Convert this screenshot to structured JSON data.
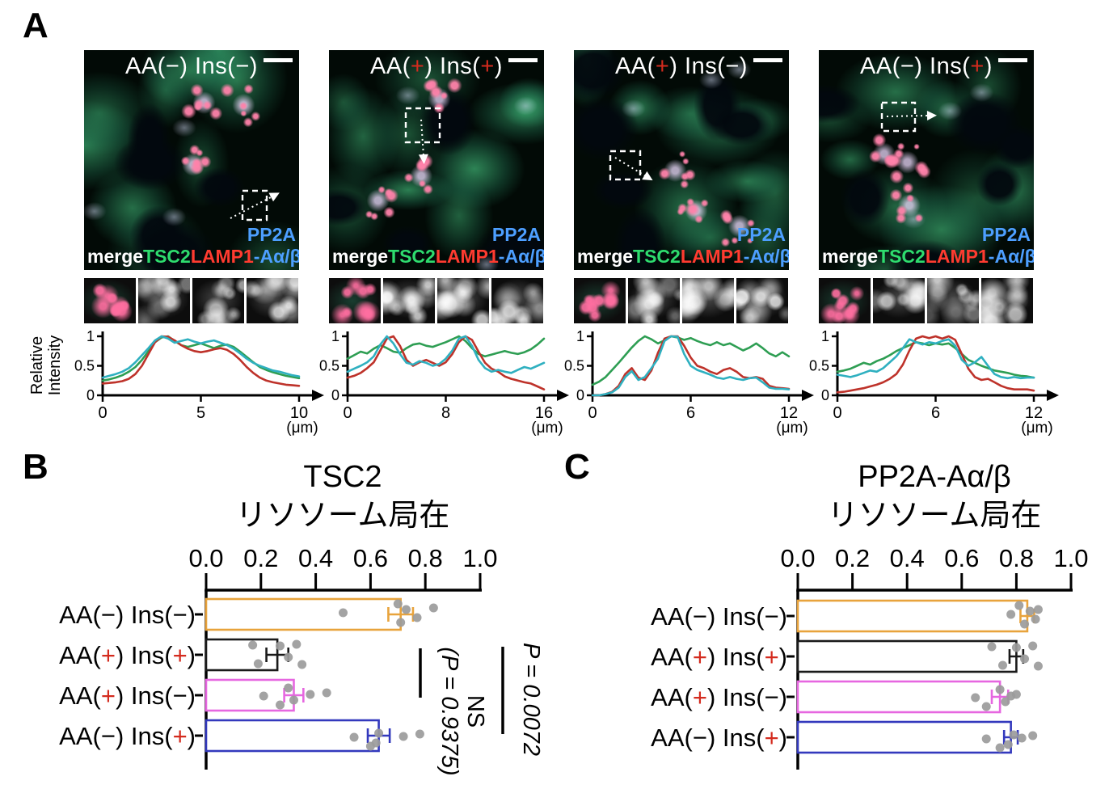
{
  "figure": {
    "panel_a_label": "A",
    "panel_b_label": "B",
    "panel_c_label": "C"
  },
  "text": {
    "condition_prefix": "AA(",
    "condition_mid": ") Ins(",
    "condition_suffix": ")",
    "channel_labels": {
      "merge": "merge",
      "tsc2": "TSC2",
      "lamp1": "LAMP1",
      "pp2a_line1": "PP2A",
      "pp2a_line2": "-Aα/β"
    },
    "profile_ylabel_line1": "Relative",
    "profile_ylabel_line2": "Intensity",
    "unit": "(μm)"
  },
  "conditions": [
    {
      "aa": "−",
      "ins": "−"
    },
    {
      "aa": "+",
      "ins": "+"
    },
    {
      "aa": "+",
      "ins": "−"
    },
    {
      "aa": "−",
      "ins": "+"
    }
  ],
  "colors": {
    "bar_outlines": [
      "#E8A33C",
      "#1A1A1A",
      "#E667E0",
      "#3339BD"
    ],
    "dot": "#9B9B9B",
    "profile_green": "#2E9E53",
    "profile_red": "#BE322A",
    "profile_cyan": "#2FB0C0",
    "channel_merge": "#FFFFFF",
    "channel_tsc2": "#2EDC6E",
    "channel_lamp1": "#FF3B30",
    "channel_pp2a": "#4D9FFF",
    "plus_red": "#D42B1E"
  },
  "chart_data": [
    {
      "type": "line",
      "id": "A-profile-1",
      "condition": "AA(−) Ins(−)",
      "ylabel": "Relative Intensity",
      "xlabel": "(μm)",
      "xlim": [
        0,
        10
      ],
      "xticks": [
        "0",
        "5",
        "10"
      ],
      "ylim": [
        0,
        1
      ],
      "yticks": [
        "1",
        "0.5",
        "0"
      ],
      "series": [
        {
          "name": "TSC2",
          "values": [
            0.25,
            0.27,
            0.3,
            0.34,
            0.4,
            0.48,
            0.6,
            0.75,
            0.9,
            0.98,
            1.0,
            0.92,
            0.85,
            0.82,
            0.85,
            0.88,
            0.84,
            0.8,
            0.84,
            0.86,
            0.82,
            0.74,
            0.65,
            0.56,
            0.48,
            0.43,
            0.39,
            0.36,
            0.33,
            0.31,
            0.29
          ]
        },
        {
          "name": "LAMP1",
          "values": [
            0.2,
            0.21,
            0.22,
            0.24,
            0.28,
            0.36,
            0.5,
            0.7,
            0.9,
            1.0,
            0.99,
            0.93,
            0.85,
            0.79,
            0.75,
            0.73,
            0.75,
            0.78,
            0.8,
            0.77,
            0.7,
            0.6,
            0.48,
            0.38,
            0.3,
            0.25,
            0.22,
            0.2,
            0.18,
            0.17,
            0.16
          ]
        },
        {
          "name": "PP2A-Aα/β",
          "values": [
            0.3,
            0.33,
            0.36,
            0.4,
            0.46,
            0.56,
            0.68,
            0.8,
            0.93,
            1.0,
            0.96,
            0.89,
            0.92,
            0.95,
            0.91,
            0.88,
            0.91,
            0.93,
            0.89,
            0.85,
            0.79,
            0.71,
            0.62,
            0.55,
            0.5,
            0.46,
            0.42,
            0.4,
            0.37,
            0.34,
            0.32
          ]
        }
      ]
    },
    {
      "type": "line",
      "id": "A-profile-2",
      "condition": "AA(+) Ins(+)",
      "ylabel": "Relative Intensity",
      "xlabel": "(μm)",
      "xlim": [
        0,
        16
      ],
      "xticks": [
        "0",
        "8",
        "16"
      ],
      "ylim": [
        0,
        1
      ],
      "yticks": [
        "1",
        "0.5",
        "0"
      ],
      "series": [
        {
          "name": "TSC2",
          "values": [
            0.62,
            0.68,
            0.74,
            0.71,
            0.79,
            0.85,
            0.8,
            0.74,
            0.72,
            0.8,
            0.86,
            0.88,
            0.84,
            0.82,
            0.86,
            0.9,
            0.95,
            1.0,
            0.92,
            0.8,
            0.7,
            0.66,
            0.69,
            0.72,
            0.75,
            0.72,
            0.7,
            0.73,
            0.78,
            0.86,
            0.96
          ]
        },
        {
          "name": "LAMP1",
          "values": [
            0.3,
            0.33,
            0.38,
            0.46,
            0.56,
            0.76,
            0.96,
            1.0,
            0.84,
            0.6,
            0.5,
            0.56,
            0.6,
            0.55,
            0.5,
            0.56,
            0.7,
            0.9,
            1.0,
            0.94,
            0.74,
            0.55,
            0.45,
            0.4,
            0.32,
            0.28,
            0.25,
            0.22,
            0.2,
            0.15,
            0.1
          ]
        },
        {
          "name": "PP2A-Aα/β",
          "values": [
            0.4,
            0.45,
            0.5,
            0.56,
            0.66,
            0.86,
            1.0,
            0.88,
            0.7,
            0.55,
            0.52,
            0.58,
            0.55,
            0.5,
            0.53,
            0.62,
            0.76,
            0.96,
            1.0,
            0.84,
            0.6,
            0.46,
            0.4,
            0.43,
            0.4,
            0.38,
            0.43,
            0.48,
            0.45,
            0.5,
            0.55
          ]
        }
      ]
    },
    {
      "type": "line",
      "id": "A-profile-3",
      "condition": "AA(+) Ins(−)",
      "ylabel": "Relative Intensity",
      "xlabel": "(μm)",
      "xlim": [
        0,
        12
      ],
      "xticks": [
        "0",
        "6",
        "12"
      ],
      "ylim": [
        0,
        1
      ],
      "yticks": [
        "1",
        "0.5",
        "0"
      ],
      "series": [
        {
          "name": "TSC2",
          "values": [
            0.18,
            0.23,
            0.31,
            0.43,
            0.55,
            0.68,
            0.81,
            0.92,
            1.0,
            0.95,
            0.88,
            0.93,
            1.0,
            0.98,
            0.94,
            0.97,
            0.92,
            0.88,
            0.85,
            0.9,
            0.85,
            0.88,
            0.82,
            0.76,
            0.81,
            0.88,
            0.8,
            0.71,
            0.66,
            0.73,
            0.66
          ]
        },
        {
          "name": "LAMP1",
          "values": [
            0.0,
            0.0,
            0.02,
            0.06,
            0.16,
            0.36,
            0.46,
            0.3,
            0.26,
            0.42,
            0.72,
            0.96,
            1.0,
            1.0,
            0.84,
            0.64,
            0.5,
            0.46,
            0.4,
            0.36,
            0.43,
            0.46,
            0.4,
            0.31,
            0.29,
            0.31,
            0.28,
            0.16,
            0.13,
            0.12,
            0.11
          ]
        },
        {
          "name": "PP2A-Aα/β",
          "values": [
            0.0,
            0.0,
            0.02,
            0.05,
            0.13,
            0.31,
            0.41,
            0.26,
            0.31,
            0.46,
            0.62,
            0.92,
            1.0,
            0.99,
            0.7,
            0.5,
            0.43,
            0.39,
            0.35,
            0.3,
            0.28,
            0.31,
            0.28,
            0.26,
            0.29,
            0.3,
            0.22,
            0.13,
            0.11,
            0.11,
            0.1
          ]
        }
      ]
    },
    {
      "type": "line",
      "id": "A-profile-4",
      "condition": "AA(−) Ins(+)",
      "ylabel": "Relative Intensity",
      "xlabel": "(μm)",
      "xlim": [
        0,
        12
      ],
      "xticks": [
        "0",
        "6",
        "12"
      ],
      "ylim": [
        0,
        1
      ],
      "yticks": [
        "1",
        "0.5",
        "0"
      ],
      "series": [
        {
          "name": "TSC2",
          "values": [
            0.4,
            0.42,
            0.45,
            0.5,
            0.55,
            0.52,
            0.58,
            0.62,
            0.68,
            0.75,
            0.8,
            0.85,
            0.9,
            0.88,
            0.85,
            0.88,
            0.86,
            0.88,
            0.8,
            0.7,
            0.6,
            0.55,
            0.5,
            0.46,
            0.42,
            0.4,
            0.38,
            0.35,
            0.33,
            0.32,
            0.3
          ]
        },
        {
          "name": "LAMP1",
          "values": [
            0.05,
            0.06,
            0.08,
            0.1,
            0.12,
            0.15,
            0.18,
            0.22,
            0.28,
            0.36,
            0.52,
            0.76,
            0.96,
            1.0,
            0.97,
            1.0,
            0.96,
            1.0,
            0.94,
            0.7,
            0.45,
            0.31,
            0.26,
            0.28,
            0.22,
            0.16,
            0.12,
            0.1,
            0.1,
            0.1,
            0.08
          ]
        },
        {
          "name": "PP2A-Aα/β",
          "values": [
            0.35,
            0.33,
            0.31,
            0.34,
            0.38,
            0.42,
            0.4,
            0.46,
            0.56,
            0.66,
            0.8,
            0.95,
            0.9,
            0.86,
            0.9,
            0.88,
            0.92,
            0.95,
            0.84,
            0.6,
            0.5,
            0.56,
            0.65,
            0.5,
            0.36,
            0.31,
            0.29,
            0.31,
            0.29,
            0.3,
            0.3
          ]
        }
      ]
    },
    {
      "type": "bar",
      "id": "B",
      "orientation": "horizontal",
      "title_line1": "TSC2",
      "title_line2": "リソソーム局在",
      "categories": [
        "AA(−) Ins(−)",
        "AA(+) Ins(+)",
        "AA(+) Ins(−)",
        "AA(−) Ins(+)"
      ],
      "values": [
        0.71,
        0.26,
        0.32,
        0.63
      ],
      "errors": [
        0.045,
        0.04,
        0.035,
        0.04
      ],
      "points": [
        [
          0.5,
          0.7,
          0.71,
          0.73,
          0.77,
          0.83
        ],
        [
          0.17,
          0.19,
          0.27,
          0.3,
          0.33,
          0.35
        ],
        [
          0.21,
          0.27,
          0.3,
          0.32,
          0.38,
          0.44
        ],
        [
          0.54,
          0.6,
          0.62,
          0.63,
          0.72,
          0.78
        ]
      ],
      "xlim": [
        0,
        1
      ],
      "xticks": [
        "0.0",
        "0.2",
        "0.4",
        "0.6",
        "0.8",
        "1.0"
      ],
      "annotations": [
        {
          "label": "NS",
          "sub": "(P = 0.9375)",
          "compare": [
            "AA(+) Ins(+)",
            "AA(+) Ins(−)"
          ]
        },
        {
          "label": "P = 0.0072",
          "sub": "",
          "compare": [
            "AA(+) Ins(+)",
            "AA(−) Ins(+)"
          ]
        }
      ]
    },
    {
      "type": "bar",
      "id": "C",
      "orientation": "horizontal",
      "title_line1": "PP2A-Aα/β",
      "title_line2": "リソソーム局在",
      "categories": [
        "AA(−) Ins(−)",
        "AA(+) Ins(+)",
        "AA(+) Ins(−)",
        "AA(−) Ins(+)"
      ],
      "values": [
        0.84,
        0.8,
        0.74,
        0.78
      ],
      "errors": [
        0.025,
        0.025,
        0.03,
        0.025
      ],
      "points": [
        [
          0.78,
          0.81,
          0.83,
          0.85,
          0.87,
          0.88
        ],
        [
          0.71,
          0.75,
          0.8,
          0.83,
          0.86,
          0.88
        ],
        [
          0.65,
          0.69,
          0.74,
          0.76,
          0.78,
          0.8
        ],
        [
          0.69,
          0.74,
          0.77,
          0.79,
          0.82,
          0.86
        ]
      ],
      "xlim": [
        0,
        1
      ],
      "xticks": [
        "0.0",
        "0.2",
        "0.4",
        "0.6",
        "0.8",
        "1.0"
      ],
      "annotations": []
    }
  ]
}
